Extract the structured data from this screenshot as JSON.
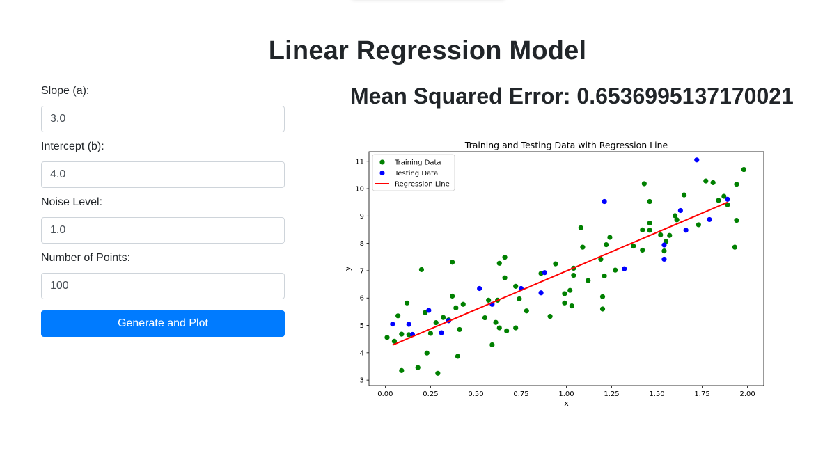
{
  "page": {
    "title": "Linear Regression Model"
  },
  "form": {
    "slope": {
      "label": "Slope (a):",
      "value": "3.0"
    },
    "intercept": {
      "label": "Intercept (b):",
      "value": "4.0"
    },
    "noise": {
      "label": "Noise Level:",
      "value": "1.0"
    },
    "points": {
      "label": "Number of Points:",
      "value": "100"
    },
    "submit_label": "Generate and Plot"
  },
  "result": {
    "mse_label": "Mean Squared Error: ",
    "mse_value": "0.6536995137170021"
  },
  "colors": {
    "primary": "#007bff",
    "training": "#008000",
    "testing": "#0000ff",
    "regression": "#ff0000"
  },
  "chart_data": {
    "type": "scatter",
    "title": "Training and Testing Data with Regression Line",
    "xlabel": "x",
    "ylabel": "y",
    "xlim": [
      -0.09,
      2.09
    ],
    "ylim": [
      2.8,
      11.35
    ],
    "xticks": [
      0.0,
      0.25,
      0.5,
      0.75,
      1.0,
      1.25,
      1.5,
      1.75,
      2.0
    ],
    "xtick_labels": [
      "0.00",
      "0.25",
      "0.50",
      "0.75",
      "1.00",
      "1.25",
      "1.50",
      "1.75",
      "2.00"
    ],
    "yticks": [
      3,
      4,
      5,
      6,
      7,
      8,
      9,
      10,
      11
    ],
    "ytick_labels": [
      "3",
      "4",
      "5",
      "6",
      "7",
      "8",
      "9",
      "10",
      "11"
    ],
    "grid": false,
    "legend_position": "top-left",
    "series": [
      {
        "name": "Training Data",
        "kind": "scatter",
        "color": "#008000",
        "points": [
          [
            0.01,
            4.56
          ],
          [
            0.05,
            4.42
          ],
          [
            0.07,
            5.35
          ],
          [
            0.09,
            3.35
          ],
          [
            0.09,
            4.68
          ],
          [
            0.12,
            5.82
          ],
          [
            0.13,
            4.66
          ],
          [
            0.18,
            3.46
          ],
          [
            0.2,
            7.04
          ],
          [
            0.22,
            5.47
          ],
          [
            0.23,
            3.99
          ],
          [
            0.25,
            4.71
          ],
          [
            0.28,
            5.1
          ],
          [
            0.29,
            3.25
          ],
          [
            0.32,
            5.29
          ],
          [
            0.35,
            5.2
          ],
          [
            0.37,
            6.07
          ],
          [
            0.37,
            7.31
          ],
          [
            0.39,
            5.64
          ],
          [
            0.4,
            3.87
          ],
          [
            0.41,
            4.85
          ],
          [
            0.43,
            5.77
          ],
          [
            0.55,
            5.28
          ],
          [
            0.57,
            5.92
          ],
          [
            0.59,
            4.29
          ],
          [
            0.61,
            5.11
          ],
          [
            0.62,
            5.92
          ],
          [
            0.63,
            7.27
          ],
          [
            0.63,
            4.91
          ],
          [
            0.66,
            6.74
          ],
          [
            0.66,
            7.49
          ],
          [
            0.67,
            4.8
          ],
          [
            0.72,
            6.43
          ],
          [
            0.72,
            4.91
          ],
          [
            0.74,
            5.97
          ],
          [
            0.78,
            5.53
          ],
          [
            0.86,
            6.9
          ],
          [
            0.91,
            5.33
          ],
          [
            0.94,
            7.25
          ],
          [
            0.99,
            6.16
          ],
          [
            0.99,
            5.82
          ],
          [
            1.02,
            6.28
          ],
          [
            1.03,
            5.71
          ],
          [
            1.04,
            6.83
          ],
          [
            1.04,
            7.09
          ],
          [
            1.08,
            8.57
          ],
          [
            1.09,
            7.86
          ],
          [
            1.12,
            6.64
          ],
          [
            1.19,
            7.42
          ],
          [
            1.2,
            6.05
          ],
          [
            1.2,
            5.6
          ],
          [
            1.21,
            6.81
          ],
          [
            1.22,
            7.95
          ],
          [
            1.24,
            8.22
          ],
          [
            1.27,
            7.02
          ],
          [
            1.37,
            7.9
          ],
          [
            1.42,
            7.75
          ],
          [
            1.42,
            8.49
          ],
          [
            1.43,
            10.18
          ],
          [
            1.46,
            9.53
          ],
          [
            1.46,
            8.74
          ],
          [
            1.46,
            8.48
          ],
          [
            1.52,
            8.31
          ],
          [
            1.54,
            7.72
          ],
          [
            1.55,
            8.07
          ],
          [
            1.57,
            8.29
          ],
          [
            1.6,
            9.01
          ],
          [
            1.61,
            8.86
          ],
          [
            1.65,
            9.77
          ],
          [
            1.73,
            8.68
          ],
          [
            1.77,
            10.28
          ],
          [
            1.81,
            10.22
          ],
          [
            1.84,
            9.57
          ],
          [
            1.87,
            9.72
          ],
          [
            1.89,
            9.41
          ],
          [
            1.93,
            7.86
          ],
          [
            1.94,
            8.84
          ],
          [
            1.94,
            10.16
          ],
          [
            1.98,
            10.7
          ]
        ]
      },
      {
        "name": "Testing Data",
        "kind": "scatter",
        "color": "#0000ff",
        "points": [
          [
            0.04,
            5.05
          ],
          [
            0.13,
            5.04
          ],
          [
            0.15,
            4.67
          ],
          [
            0.24,
            5.55
          ],
          [
            0.31,
            4.73
          ],
          [
            0.35,
            5.17
          ],
          [
            0.52,
            6.35
          ],
          [
            0.59,
            5.77
          ],
          [
            0.75,
            6.35
          ],
          [
            0.86,
            6.19
          ],
          [
            0.88,
            6.93
          ],
          [
            1.21,
            9.53
          ],
          [
            1.32,
            7.07
          ],
          [
            1.54,
            7.94
          ],
          [
            1.54,
            7.42
          ],
          [
            1.63,
            9.2
          ],
          [
            1.66,
            8.48
          ],
          [
            1.72,
            11.05
          ],
          [
            1.79,
            8.87
          ],
          [
            1.89,
            9.61
          ]
        ]
      },
      {
        "name": "Regression Line",
        "kind": "line",
        "color": "#ff0000",
        "points": [
          [
            0.04,
            4.28
          ],
          [
            1.89,
            9.5
          ]
        ]
      }
    ]
  }
}
